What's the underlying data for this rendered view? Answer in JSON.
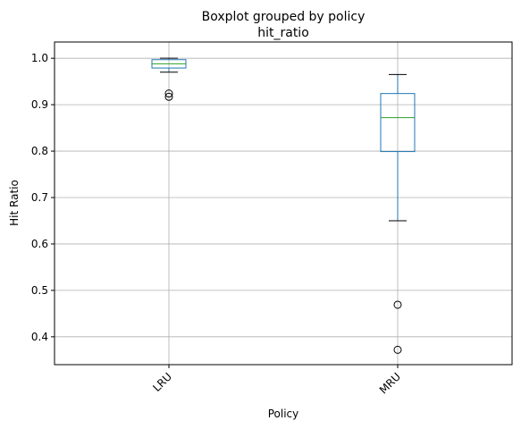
{
  "chart_data": {
    "type": "box",
    "suptitle": "Boxplot grouped by policy",
    "title": "hit_ratio",
    "xlabel": "Policy",
    "ylabel": "Hit Ratio",
    "categories": [
      "LRU",
      "MRU"
    ],
    "ylim": [
      0.34,
      1.035
    ],
    "yticks": [
      "0.4",
      "0.5",
      "0.6",
      "0.7",
      "0.8",
      "0.9",
      "1.0"
    ],
    "grid": true,
    "x_tick_rotation": 45,
    "boxes": [
      {
        "category": "LRU",
        "whisker_low": 0.97,
        "q1": 0.979,
        "median": 0.988,
        "q3": 0.997,
        "whisker_high": 1.0,
        "outliers": [
          0.917,
          0.924
        ]
      },
      {
        "category": "MRU",
        "whisker_low": 0.65,
        "q1": 0.799,
        "median": 0.872,
        "q3": 0.924,
        "whisker_high": 0.965,
        "outliers": [
          0.469,
          0.372
        ]
      }
    ],
    "colors": {
      "box": "#1f77b4",
      "median": "#2ca02c",
      "whisker": "#000000",
      "grid": "#b0b0b0"
    }
  }
}
